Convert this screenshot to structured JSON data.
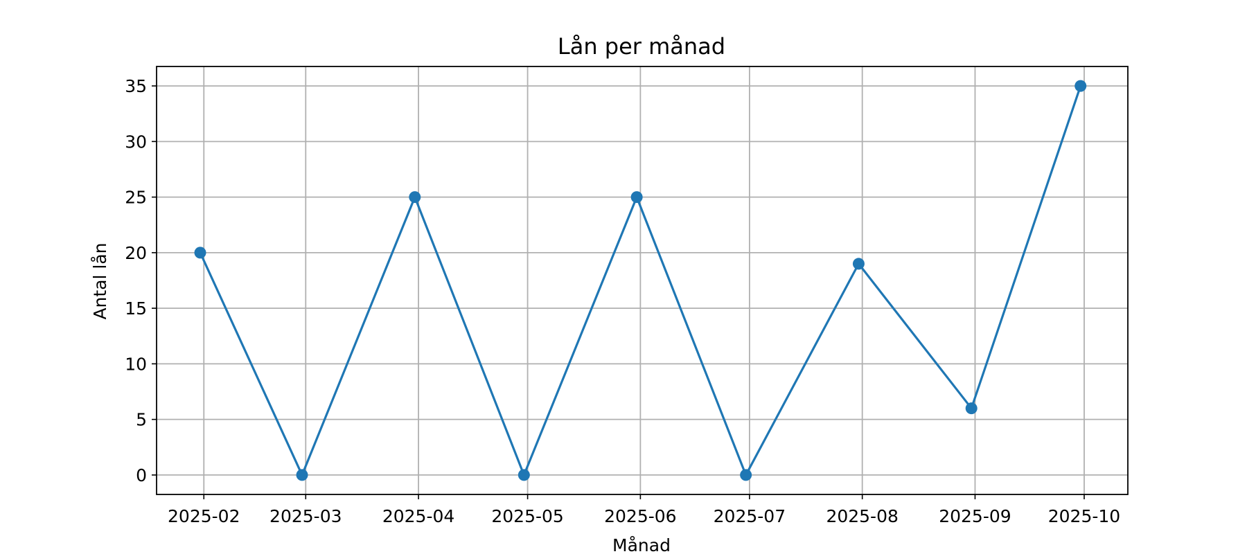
{
  "chart_data": {
    "type": "line",
    "title": "Lån per månad",
    "xlabel": "Månad",
    "ylabel": "Antal lån",
    "x": [
      "2025-02",
      "2025-03",
      "2025-04",
      "2025-05",
      "2025-06",
      "2025-07",
      "2025-08",
      "2025-09",
      "2025-10"
    ],
    "x_dates": [
      "2025-01-31",
      "2025-02-28",
      "2025-03-31",
      "2025-04-30",
      "2025-05-31",
      "2025-06-30",
      "2025-07-31",
      "2025-08-31",
      "2025-09-30"
    ],
    "x_tick_dates": [
      "2025-02-01",
      "2025-03-01",
      "2025-04-01",
      "2025-05-01",
      "2025-06-01",
      "2025-07-01",
      "2025-08-01",
      "2025-09-01",
      "2025-10-01"
    ],
    "series": [
      {
        "values": [
          20,
          0,
          25,
          0,
          25,
          0,
          19,
          6,
          35
        ],
        "color": "#1f77b4",
        "marker": "circle"
      }
    ],
    "yticks": [
      0,
      5,
      10,
      15,
      20,
      25,
      30,
      35
    ],
    "ylim": [
      -1.75,
      36.75
    ],
    "xlim": [
      "2025-01-19",
      "2025-10-13"
    ],
    "grid": true,
    "legend": "none"
  }
}
